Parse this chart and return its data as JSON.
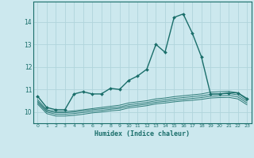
{
  "xlabel": "Humidex (Indice chaleur)",
  "xlim": [
    -0.5,
    23.5
  ],
  "ylim": [
    9.5,
    14.9
  ],
  "yticks": [
    10,
    11,
    12,
    13,
    14
  ],
  "xticks": [
    0,
    1,
    2,
    3,
    4,
    5,
    6,
    7,
    8,
    9,
    10,
    11,
    12,
    13,
    14,
    15,
    16,
    17,
    18,
    19,
    20,
    21,
    22,
    23
  ],
  "background_color": "#cce8ee",
  "grid_color": "#b0d4dc",
  "line_color": "#1a6e6a",
  "main_line": {
    "x": [
      0,
      1,
      2,
      3,
      4,
      5,
      6,
      7,
      8,
      9,
      10,
      11,
      12,
      13,
      14,
      15,
      16,
      17,
      18,
      19,
      20,
      21,
      22,
      23
    ],
    "y": [
      10.7,
      10.2,
      10.1,
      10.1,
      10.8,
      10.9,
      10.8,
      10.8,
      11.05,
      11.0,
      11.4,
      11.6,
      11.9,
      13.0,
      12.65,
      14.2,
      14.35,
      13.5,
      12.45,
      10.8,
      10.8,
      10.85,
      10.85,
      10.6
    ]
  },
  "band_upper": {
    "x": [
      0,
      1,
      2,
      3,
      4,
      5,
      6,
      7,
      8,
      9,
      10,
      11,
      12,
      13,
      14,
      15,
      16,
      17,
      18,
      19,
      20,
      21,
      22,
      23
    ],
    "y": [
      10.55,
      10.1,
      10.02,
      10.02,
      10.05,
      10.1,
      10.15,
      10.2,
      10.25,
      10.3,
      10.4,
      10.45,
      10.5,
      10.58,
      10.62,
      10.68,
      10.72,
      10.76,
      10.8,
      10.88,
      10.9,
      10.92,
      10.85,
      10.55
    ]
  },
  "band_mid1": {
    "x": [
      0,
      1,
      2,
      3,
      4,
      5,
      6,
      7,
      8,
      9,
      10,
      11,
      12,
      13,
      14,
      15,
      16,
      17,
      18,
      19,
      20,
      21,
      22,
      23
    ],
    "y": [
      10.48,
      10.05,
      9.97,
      9.97,
      10.0,
      10.05,
      10.1,
      10.14,
      10.18,
      10.22,
      10.32,
      10.37,
      10.42,
      10.5,
      10.54,
      10.6,
      10.64,
      10.68,
      10.72,
      10.78,
      10.8,
      10.82,
      10.76,
      10.48
    ]
  },
  "band_mid2": {
    "x": [
      0,
      1,
      2,
      3,
      4,
      5,
      6,
      7,
      8,
      9,
      10,
      11,
      12,
      13,
      14,
      15,
      16,
      17,
      18,
      19,
      20,
      21,
      22,
      23
    ],
    "y": [
      10.42,
      10.0,
      9.9,
      9.9,
      9.93,
      9.98,
      10.03,
      10.07,
      10.12,
      10.16,
      10.25,
      10.3,
      10.35,
      10.43,
      10.47,
      10.52,
      10.56,
      10.6,
      10.64,
      10.7,
      10.72,
      10.74,
      10.67,
      10.4
    ]
  },
  "band_lower": {
    "x": [
      0,
      1,
      2,
      3,
      4,
      5,
      6,
      7,
      8,
      9,
      10,
      11,
      12,
      13,
      14,
      15,
      16,
      17,
      18,
      19,
      20,
      21,
      22,
      23
    ],
    "y": [
      10.35,
      9.93,
      9.82,
      9.82,
      9.85,
      9.9,
      9.96,
      10.0,
      10.05,
      10.08,
      10.18,
      10.23,
      10.28,
      10.36,
      10.4,
      10.45,
      10.49,
      10.52,
      10.56,
      10.62,
      10.64,
      10.65,
      10.58,
      10.32
    ]
  }
}
